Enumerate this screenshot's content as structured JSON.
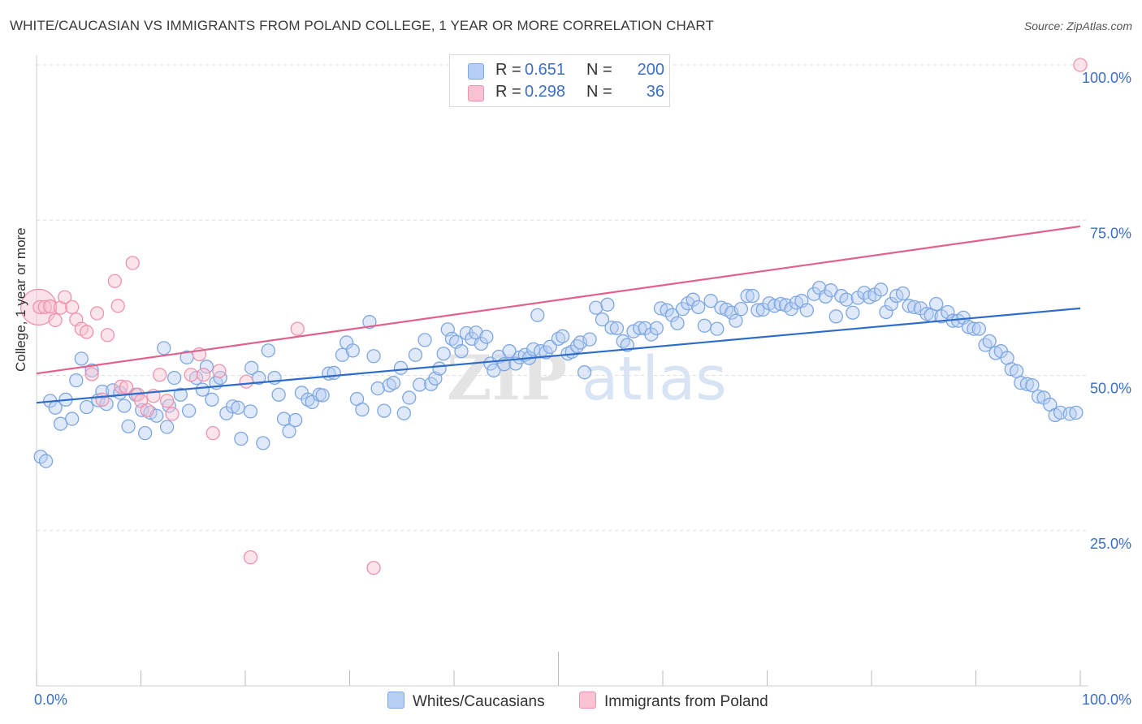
{
  "title": "WHITE/CAUCASIAN VS IMMIGRANTS FROM POLAND COLLEGE, 1 YEAR OR MORE CORRELATION CHART",
  "source": "Source: ZipAtlas.com",
  "watermark": {
    "zip": "ZIP",
    "atlas": "atlas"
  },
  "legend": {
    "r_label": "R =",
    "n_label": "N =",
    "series": [
      {
        "name": "Whites/Caucasians",
        "r": "0.651",
        "n": "200",
        "color": "#7ea7e0",
        "fill": "#b7cff3",
        "line": "#2d6cc9"
      },
      {
        "name": "Immigrants from Poland",
        "r": "0.298",
        "n": "36",
        "color": "#ee92ad",
        "fill": "#f8c3d3",
        "line": "#e0628a"
      }
    ]
  },
  "chart_data": {
    "type": "scatter",
    "title": "WHITE/CAUCASIAN VS IMMIGRANTS FROM POLAND COLLEGE, 1 YEAR OR MORE CORRELATION CHART",
    "xlabel": "",
    "ylabel": "College, 1 year or more",
    "xlim": [
      0,
      100
    ],
    "ylim": [
      0,
      100
    ],
    "x_tick_labels": [
      "0.0%",
      "100.0%"
    ],
    "y_ticks": [
      25,
      50,
      75,
      100
    ],
    "y_tick_labels": [
      "25.0%",
      "50.0%",
      "75.0%",
      "100.0%"
    ],
    "series": [
      {
        "name": "Whites/Caucasians",
        "trend": {
          "x": [
            0,
            100
          ],
          "y": [
            45.6,
            60.8
          ]
        },
        "points": [
          [
            0.4,
            36.9
          ],
          [
            0.9,
            36.2
          ],
          [
            1.3,
            45.9
          ],
          [
            1.8,
            44.8
          ],
          [
            2.3,
            42.2
          ],
          [
            2.8,
            46.1
          ],
          [
            3.4,
            43.0
          ],
          [
            3.8,
            49.2
          ],
          [
            4.3,
            52.7
          ],
          [
            4.8,
            44.9
          ],
          [
            5.3,
            50.8
          ],
          [
            5.9,
            46.0
          ],
          [
            6.3,
            47.4
          ],
          [
            6.7,
            45.4
          ],
          [
            7.3,
            47.6
          ],
          [
            8.0,
            47.2
          ],
          [
            8.4,
            45.1
          ],
          [
            8.8,
            41.8
          ],
          [
            9.5,
            46.9
          ],
          [
            10.1,
            44.4
          ],
          [
            10.4,
            40.7
          ],
          [
            10.9,
            44.0
          ],
          [
            11.5,
            43.5
          ],
          [
            12.2,
            54.4
          ],
          [
            12.5,
            41.7
          ],
          [
            12.7,
            45.1
          ],
          [
            13.2,
            49.6
          ],
          [
            13.8,
            46.9
          ],
          [
            14.4,
            52.9
          ],
          [
            14.6,
            44.3
          ],
          [
            15.3,
            49.6
          ],
          [
            15.9,
            47.7
          ],
          [
            16.3,
            51.4
          ],
          [
            16.8,
            46.1
          ],
          [
            17.2,
            48.8
          ],
          [
            17.6,
            49.6
          ],
          [
            18.2,
            43.9
          ],
          [
            18.8,
            45.0
          ],
          [
            19.3,
            44.8
          ],
          [
            19.6,
            39.8
          ],
          [
            20.5,
            44.2
          ],
          [
            20.6,
            51.2
          ],
          [
            21.3,
            49.6
          ],
          [
            21.7,
            39.1
          ],
          [
            22.2,
            54.0
          ],
          [
            22.8,
            49.6
          ],
          [
            23.2,
            46.9
          ],
          [
            23.7,
            43.0
          ],
          [
            24.2,
            41.0
          ],
          [
            24.8,
            42.8
          ],
          [
            25.4,
            47.2
          ],
          [
            26.0,
            46.1
          ],
          [
            26.4,
            45.7
          ],
          [
            27.1,
            46.9
          ],
          [
            27.4,
            46.8
          ],
          [
            28.0,
            50.3
          ],
          [
            28.5,
            50.4
          ],
          [
            29.3,
            53.3
          ],
          [
            29.7,
            55.3
          ],
          [
            30.3,
            54.0
          ],
          [
            30.7,
            46.2
          ],
          [
            31.2,
            44.5
          ],
          [
            31.9,
            58.6
          ],
          [
            32.3,
            53.1
          ],
          [
            32.7,
            47.9
          ],
          [
            33.3,
            44.3
          ],
          [
            33.8,
            48.4
          ],
          [
            34.2,
            48.8
          ],
          [
            34.9,
            51.2
          ],
          [
            35.2,
            43.9
          ],
          [
            35.7,
            46.4
          ],
          [
            36.3,
            53.3
          ],
          [
            36.7,
            48.5
          ],
          [
            37.2,
            55.7
          ],
          [
            37.8,
            48.6
          ],
          [
            38.2,
            49.5
          ],
          [
            38.6,
            51.1
          ],
          [
            39.0,
            53.5
          ],
          [
            39.4,
            57.4
          ],
          [
            39.8,
            55.9
          ],
          [
            40.2,
            55.4
          ],
          [
            40.7,
            53.9
          ],
          [
            41.2,
            56.8
          ],
          [
            41.7,
            55.9
          ],
          [
            42.1,
            56.9
          ],
          [
            42.6,
            55.1
          ],
          [
            43.1,
            56.2
          ],
          [
            43.5,
            51.9
          ],
          [
            43.8,
            50.8
          ],
          [
            44.3,
            53.0
          ],
          [
            44.8,
            51.8
          ],
          [
            45.3,
            53.9
          ],
          [
            45.9,
            51.9
          ],
          [
            46.3,
            52.9
          ],
          [
            46.8,
            53.3
          ],
          [
            47.2,
            52.8
          ],
          [
            47.6,
            54.2
          ],
          [
            48.0,
            59.7
          ],
          [
            48.3,
            53.9
          ],
          [
            48.8,
            53.7
          ],
          [
            49.2,
            54.6
          ],
          [
            50.0,
            55.9
          ],
          [
            50.4,
            56.3
          ],
          [
            50.9,
            53.5
          ],
          [
            51.3,
            53.8
          ],
          [
            51.8,
            54.7
          ],
          [
            52.1,
            55.3
          ],
          [
            52.5,
            50.5
          ],
          [
            53.0,
            55.8
          ],
          [
            53.6,
            60.9
          ],
          [
            54.2,
            59.0
          ],
          [
            54.7,
            61.4
          ],
          [
            55.1,
            57.7
          ],
          [
            55.6,
            57.6
          ],
          [
            56.2,
            55.5
          ],
          [
            56.6,
            54.9
          ],
          [
            57.2,
            57.1
          ],
          [
            57.8,
            57.6
          ],
          [
            58.3,
            57.6
          ],
          [
            58.9,
            56.6
          ],
          [
            59.4,
            57.6
          ],
          [
            59.8,
            60.8
          ],
          [
            60.4,
            60.5
          ],
          [
            60.9,
            59.7
          ],
          [
            61.4,
            58.4
          ],
          [
            61.9,
            60.7
          ],
          [
            62.4,
            61.6
          ],
          [
            62.9,
            62.2
          ],
          [
            63.4,
            61.0
          ],
          [
            64.0,
            58.0
          ],
          [
            64.6,
            62.0
          ],
          [
            65.2,
            57.5
          ],
          [
            65.6,
            60.9
          ],
          [
            66.1,
            60.6
          ],
          [
            66.6,
            60.1
          ],
          [
            67.0,
            58.8
          ],
          [
            67.5,
            60.7
          ],
          [
            68.1,
            62.8
          ],
          [
            68.6,
            62.8
          ],
          [
            69.1,
            60.5
          ],
          [
            69.6,
            60.6
          ],
          [
            70.2,
            61.6
          ],
          [
            70.7,
            61.2
          ],
          [
            71.3,
            61.5
          ],
          [
            71.8,
            61.3
          ],
          [
            72.3,
            60.7
          ],
          [
            72.8,
            61.7
          ],
          [
            73.3,
            62.0
          ],
          [
            73.8,
            60.5
          ],
          [
            74.5,
            63.1
          ],
          [
            75.0,
            64.1
          ],
          [
            75.6,
            62.7
          ],
          [
            76.1,
            63.7
          ],
          [
            76.6,
            59.5
          ],
          [
            77.1,
            62.8
          ],
          [
            77.6,
            62.2
          ],
          [
            78.2,
            60.1
          ],
          [
            78.7,
            62.5
          ],
          [
            79.3,
            63.3
          ],
          [
            79.8,
            62.6
          ],
          [
            80.3,
            63.0
          ],
          [
            80.9,
            63.8
          ],
          [
            81.4,
            60.2
          ],
          [
            81.9,
            61.5
          ],
          [
            82.4,
            62.8
          ],
          [
            83.0,
            63.2
          ],
          [
            83.6,
            61.2
          ],
          [
            84.1,
            61.0
          ],
          [
            84.7,
            60.8
          ],
          [
            85.3,
            59.9
          ],
          [
            85.7,
            59.7
          ],
          [
            86.2,
            61.5
          ],
          [
            86.7,
            59.5
          ],
          [
            87.3,
            60.2
          ],
          [
            87.8,
            58.8
          ],
          [
            88.3,
            58.8
          ],
          [
            88.8,
            59.3
          ],
          [
            89.3,
            57.8
          ],
          [
            89.8,
            57.5
          ],
          [
            90.3,
            57.5
          ],
          [
            90.9,
            54.9
          ],
          [
            91.3,
            55.5
          ],
          [
            91.9,
            53.6
          ],
          [
            92.4,
            53.9
          ],
          [
            93.0,
            52.8
          ],
          [
            93.4,
            51.0
          ],
          [
            93.9,
            50.7
          ],
          [
            94.3,
            48.8
          ],
          [
            94.9,
            48.6
          ],
          [
            95.4,
            48.4
          ],
          [
            96.0,
            46.6
          ],
          [
            96.5,
            46.4
          ],
          [
            97.1,
            45.3
          ],
          [
            97.6,
            43.6
          ],
          [
            98.1,
            44.0
          ],
          [
            99.0,
            43.8
          ],
          [
            99.6,
            44.0
          ]
        ]
      },
      {
        "name": "Immigrants from Poland",
        "trend": {
          "x": [
            0,
            100
          ],
          "y": [
            50.3,
            74.0
          ]
        },
        "points": [
          [
            0.3,
            61.0
          ],
          [
            0.8,
            61.0
          ],
          [
            1.3,
            61.1
          ],
          [
            1.8,
            58.9
          ],
          [
            2.3,
            60.9
          ],
          [
            2.7,
            62.6
          ],
          [
            3.4,
            61.0
          ],
          [
            3.8,
            59.0
          ],
          [
            4.3,
            57.5
          ],
          [
            4.8,
            57.0
          ],
          [
            5.3,
            50.2
          ],
          [
            5.8,
            60.0
          ],
          [
            6.3,
            46.1
          ],
          [
            6.8,
            56.5
          ],
          [
            7.5,
            65.2
          ],
          [
            7.8,
            61.2
          ],
          [
            8.1,
            48.2
          ],
          [
            8.6,
            48.1
          ],
          [
            9.2,
            68.1
          ],
          [
            9.7,
            46.9
          ],
          [
            10.0,
            45.9
          ],
          [
            10.6,
            44.4
          ],
          [
            11.2,
            46.7
          ],
          [
            11.8,
            50.1
          ],
          [
            12.5,
            45.9
          ],
          [
            13.0,
            43.8
          ],
          [
            14.8,
            50.1
          ],
          [
            15.6,
            53.4
          ],
          [
            16.0,
            50.1
          ],
          [
            16.9,
            40.7
          ],
          [
            17.5,
            50.7
          ],
          [
            20.1,
            49.0
          ],
          [
            20.5,
            20.7
          ],
          [
            25.0,
            57.5
          ],
          [
            32.3,
            19.0
          ],
          [
            100.0,
            100.0
          ]
        ],
        "big_point": [
          0.2,
          61.0
        ]
      }
    ]
  }
}
